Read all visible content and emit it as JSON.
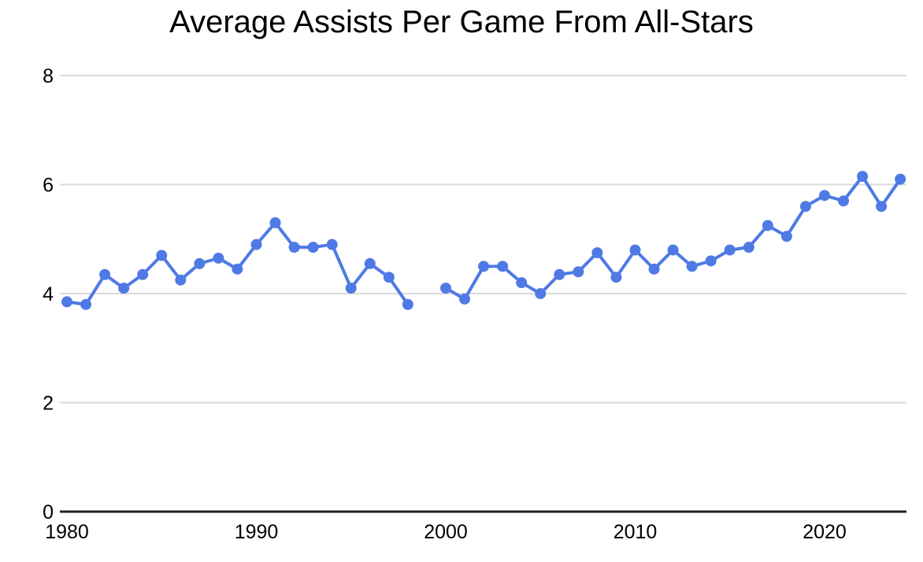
{
  "chart_data": {
    "type": "line",
    "title": "Average Assists Per Game From All-Stars",
    "xlabel": "",
    "ylabel": "",
    "x": [
      1980,
      1981,
      1982,
      1983,
      1984,
      1985,
      1986,
      1987,
      1988,
      1989,
      1990,
      1991,
      1992,
      1993,
      1994,
      1995,
      1996,
      1997,
      1998,
      1999,
      2000,
      2001,
      2002,
      2003,
      2004,
      2005,
      2006,
      2007,
      2008,
      2009,
      2010,
      2011,
      2012,
      2013,
      2014,
      2015,
      2016,
      2017,
      2018,
      2019,
      2020,
      2021,
      2022,
      2023,
      2024
    ],
    "values": [
      3.85,
      3.8,
      4.35,
      4.1,
      4.35,
      4.7,
      4.25,
      4.55,
      4.65,
      4.45,
      4.9,
      5.3,
      4.85,
      4.85,
      4.9,
      4.1,
      4.55,
      4.3,
      3.8,
      null,
      4.1,
      3.9,
      4.5,
      4.5,
      4.2,
      4.0,
      4.35,
      4.4,
      4.75,
      4.3,
      4.8,
      4.45,
      4.8,
      4.5,
      4.6,
      4.8,
      4.85,
      5.25,
      5.05,
      5.6,
      5.8,
      5.7,
      6.15,
      5.6,
      6.1
    ],
    "missing_x": [
      1999
    ],
    "xlim": [
      1980,
      2024
    ],
    "ylim": [
      0,
      8
    ],
    "x_ticks": [
      1980,
      1990,
      2000,
      2010,
      2020
    ],
    "y_ticks": [
      0,
      2,
      4,
      6,
      8
    ],
    "grid": true,
    "legend": "none",
    "marker": "circle",
    "colors": {
      "line": "#4f7ae5",
      "grid": "#d9d9d9",
      "axis": "#1f1f1f",
      "text": "#000000",
      "background": "#ffffff"
    }
  }
}
